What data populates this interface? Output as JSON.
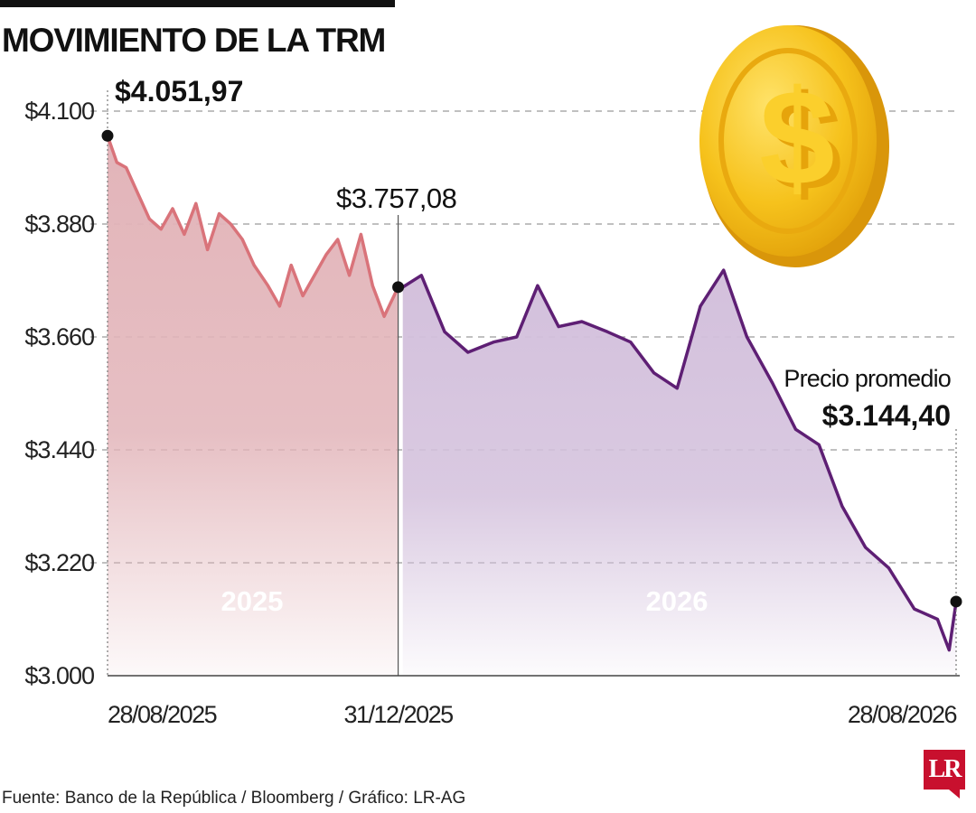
{
  "title": "MOVIMIENTO DE LA TRM",
  "source": "Fuente: Banco de la República / Bloomberg / Gráfico: LR-AG",
  "logo": "LR",
  "coin_icon": "dollar-coin-icon",
  "colors": {
    "series_2025_line": "#d9737a",
    "series_2025_fill": "#e2b4b9",
    "series_2026_line": "#5e1f74",
    "series_2026_fill": "#d3c0dc",
    "gridline": "#9a9a9a",
    "coin": "#f6c21c"
  },
  "annotations": {
    "start_value": "$4.051,97",
    "year_end_value": "$3.757,08",
    "avg_label": "Precio promedio",
    "avg_value": "$3.144,40"
  },
  "chart_data": {
    "type": "area",
    "title": "MOVIMIENTO DE LA TRM",
    "xlabel": "",
    "ylabel": "",
    "ylim": [
      3000,
      4100
    ],
    "yticks": [
      3000,
      3220,
      3440,
      3660,
      3880,
      4100
    ],
    "ytick_labels": [
      "$3.000",
      "$3.220",
      "$3.440",
      "$3.660",
      "$3.880",
      "$4.100"
    ],
    "xtick_labels": [
      "28/08/2025",
      "31/12/2025",
      "28/08/2026"
    ],
    "grid": "horizontal dashed",
    "series": [
      {
        "name": "2025",
        "x": [
          "2025-08-28",
          "2025-09-01",
          "2025-09-05",
          "2025-09-10",
          "2025-09-15",
          "2025-09-20",
          "2025-09-25",
          "2025-09-30",
          "2025-10-05",
          "2025-10-10",
          "2025-10-15",
          "2025-10-20",
          "2025-10-25",
          "2025-10-30",
          "2025-11-05",
          "2025-11-10",
          "2025-11-15",
          "2025-11-20",
          "2025-11-25",
          "2025-11-30",
          "2025-12-05",
          "2025-12-10",
          "2025-12-15",
          "2025-12-20",
          "2025-12-25",
          "2025-12-31"
        ],
        "values": [
          4052,
          4000,
          3990,
          3940,
          3890,
          3870,
          3910,
          3860,
          3920,
          3830,
          3900,
          3880,
          3850,
          3800,
          3760,
          3720,
          3800,
          3740,
          3780,
          3820,
          3850,
          3780,
          3860,
          3760,
          3700,
          3757
        ]
      },
      {
        "name": "2026",
        "x": [
          "2026-01-02",
          "2026-01-10",
          "2026-01-20",
          "2026-01-30",
          "2026-02-10",
          "2026-02-20",
          "2026-03-01",
          "2026-03-10",
          "2026-03-20",
          "2026-03-31",
          "2026-04-10",
          "2026-04-20",
          "2026-04-30",
          "2026-05-10",
          "2026-05-20",
          "2026-05-30",
          "2026-06-10",
          "2026-06-20",
          "2026-06-30",
          "2026-07-10",
          "2026-07-20",
          "2026-07-30",
          "2026-08-10",
          "2026-08-20",
          "2026-08-25",
          "2026-08-28"
        ],
        "values": [
          3757,
          3780,
          3670,
          3630,
          3650,
          3660,
          3760,
          3680,
          3690,
          3670,
          3650,
          3590,
          3560,
          3720,
          3790,
          3660,
          3570,
          3480,
          3450,
          3330,
          3250,
          3210,
          3130,
          3110,
          3050,
          3144
        ]
      }
    ],
    "highlighted_points": [
      {
        "x": "2025-08-28",
        "y": 4051.97,
        "label": "$4.051,97"
      },
      {
        "x": "2025-12-31",
        "y": 3757.08,
        "label": "$3.757,08"
      },
      {
        "x": "2026-08-28",
        "y": 3144.4,
        "label": "$3.144,40"
      }
    ],
    "region_labels": [
      "2025",
      "2026"
    ]
  }
}
